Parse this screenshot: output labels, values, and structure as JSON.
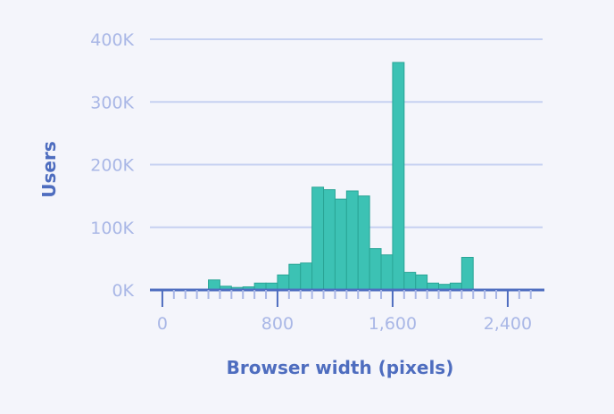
{
  "chart_data": {
    "type": "bar",
    "xlabel": "Browser width (pixels)",
    "ylabel": "Users",
    "ylim": [
      0,
      400000
    ],
    "xlim": [
      -80,
      2640
    ],
    "grid": true,
    "bin_width": 80,
    "bin_starts": [
      320,
      400,
      480,
      560,
      640,
      720,
      800,
      880,
      960,
      1040,
      1120,
      1200,
      1280,
      1360,
      1440,
      1520,
      1600,
      1680,
      1760,
      1840,
      1920,
      2000,
      2080,
      2160,
      2240,
      2320,
      2400,
      2480
    ],
    "values": [
      16000,
      6000,
      4000,
      5000,
      11000,
      11000,
      24000,
      41000,
      43000,
      164000,
      160000,
      145000,
      158000,
      150000,
      66000,
      56000,
      363000,
      28000,
      24000,
      11000,
      9000,
      11000,
      52000,
      0,
      0,
      0,
      0,
      0
    ],
    "y_ticks": [
      0,
      100000,
      200000,
      300000,
      400000
    ],
    "y_tick_labels": [
      "0K",
      "100K",
      "200K",
      "300K",
      "400K"
    ],
    "x_ticks": [
      0,
      800,
      1600,
      2400
    ],
    "x_tick_labels": [
      "0",
      "800",
      "1,600",
      "2,400"
    ],
    "colors": {
      "bar": "#3cc2b4",
      "bar_stroke": "#2aa596",
      "grid": "#c6d1f1",
      "axis": "#4e6dbf",
      "tick_label": "#a9b7e6",
      "axis_title": "#4e6dbf",
      "background": "#f4f5fb"
    }
  }
}
